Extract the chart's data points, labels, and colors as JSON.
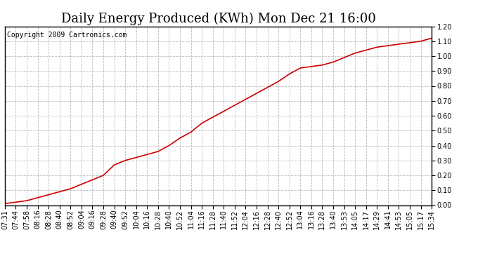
{
  "title": "Daily Energy Produced (KWh) Mon Dec 21 16:00",
  "copyright_text": "Copyright 2009 Cartronics.com",
  "line_color": "#cc0000",
  "background_color": "#ffffff",
  "plot_background": "#ffffff",
  "grid_color": "#bbbbbb",
  "ylim": [
    0.0,
    1.2
  ],
  "yticks": [
    0.0,
    0.1,
    0.2,
    0.3,
    0.4,
    0.5,
    0.6,
    0.7,
    0.8,
    0.9,
    1.0,
    1.1,
    1.2
  ],
  "x_labels": [
    "07:31",
    "07:44",
    "07:58",
    "08:16",
    "08:28",
    "08:40",
    "08:52",
    "09:04",
    "09:16",
    "09:28",
    "09:40",
    "09:52",
    "10:04",
    "10:16",
    "10:28",
    "10:40",
    "10:52",
    "11:04",
    "11:16",
    "11:28",
    "11:40",
    "11:52",
    "12:04",
    "12:16",
    "12:28",
    "12:40",
    "12:52",
    "13:04",
    "13:16",
    "13:28",
    "13:40",
    "13:53",
    "14:05",
    "14:17",
    "14:29",
    "14:41",
    "14:53",
    "15:05",
    "15:17",
    "15:34"
  ],
  "y_values": [
    0.01,
    0.02,
    0.03,
    0.05,
    0.07,
    0.09,
    0.11,
    0.14,
    0.17,
    0.2,
    0.27,
    0.3,
    0.32,
    0.34,
    0.36,
    0.4,
    0.45,
    0.49,
    0.55,
    0.59,
    0.63,
    0.67,
    0.71,
    0.75,
    0.79,
    0.83,
    0.88,
    0.92,
    0.93,
    0.94,
    0.96,
    0.99,
    1.02,
    1.04,
    1.06,
    1.07,
    1.08,
    1.09,
    1.1,
    1.12
  ],
  "title_fontsize": 13,
  "tick_fontsize": 7,
  "copyright_fontsize": 7,
  "line_width": 1.2
}
